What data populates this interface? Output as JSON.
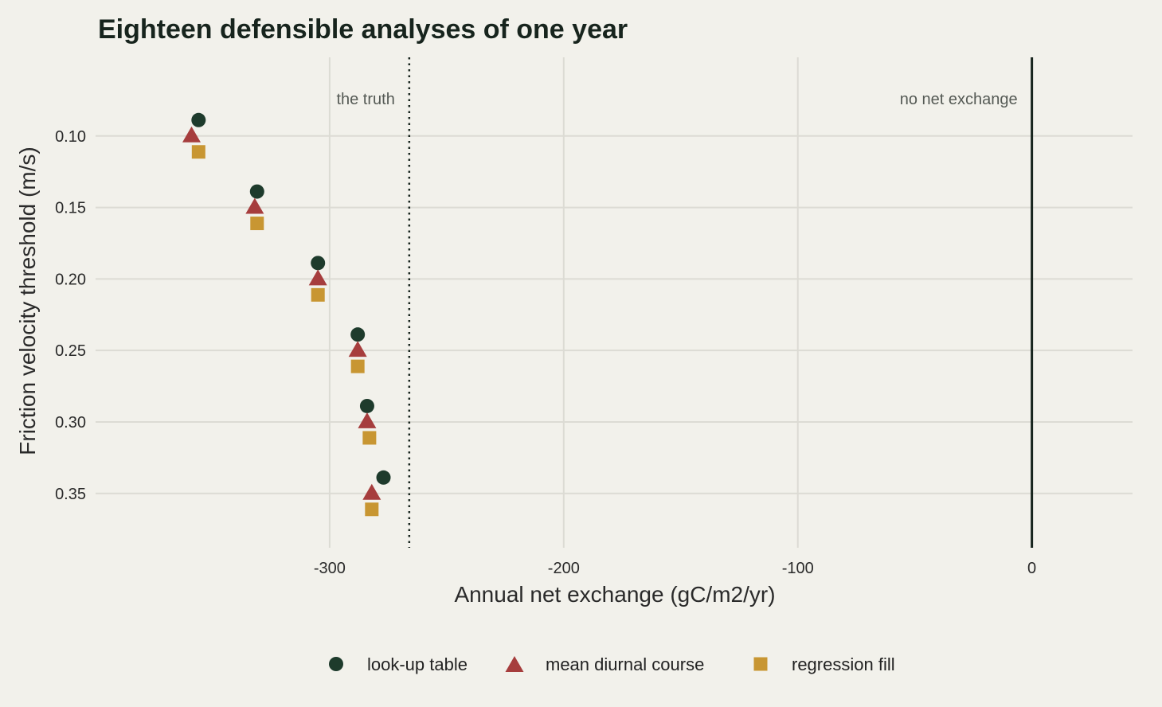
{
  "chart_data": {
    "type": "scatter",
    "title": "Eighteen defensible analyses of one year",
    "xlabel": "Annual net exchange (gC/m2/yr)",
    "ylabel": "Friction velocity threshold (m/s)",
    "xlim": [
      -400,
      43
    ],
    "ylim": [
      0.045,
      0.388
    ],
    "y_reversed": true,
    "x_ticks": [
      -300,
      -200,
      -100,
      0
    ],
    "x_tick_labels": [
      "-300",
      "-200",
      "-100",
      "0"
    ],
    "y_ticks": [
      0.1,
      0.15,
      0.2,
      0.25,
      0.3,
      0.35
    ],
    "y_tick_labels": [
      "0.10",
      "0.15",
      "0.20",
      "0.25",
      "0.30",
      "0.35"
    ],
    "grid": true,
    "legend_position": "bottom",
    "reference_lines": [
      {
        "x": -266,
        "style": "dotted",
        "label": "the truth"
      },
      {
        "x": 0,
        "style": "solid",
        "label": "no net exchange"
      }
    ],
    "series": [
      {
        "name": "look-up table",
        "marker": "circle",
        "color": "#1e3b2c",
        "points": [
          {
            "x": -356,
            "y": 0.1
          },
          {
            "x": -331,
            "y": 0.15
          },
          {
            "x": -305,
            "y": 0.2
          },
          {
            "x": -288,
            "y": 0.25
          },
          {
            "x": -284,
            "y": 0.3
          },
          {
            "x": -277,
            "y": 0.35
          }
        ]
      },
      {
        "name": "mean diurnal course",
        "marker": "triangle",
        "color": "#a63d3d",
        "points": [
          {
            "x": -359,
            "y": 0.1
          },
          {
            "x": -332,
            "y": 0.15
          },
          {
            "x": -305,
            "y": 0.2
          },
          {
            "x": -288,
            "y": 0.25
          },
          {
            "x": -284,
            "y": 0.3
          },
          {
            "x": -282,
            "y": 0.35
          }
        ]
      },
      {
        "name": "regression fill",
        "marker": "square",
        "color": "#c89632",
        "points": [
          {
            "x": -356,
            "y": 0.1
          },
          {
            "x": -331,
            "y": 0.15
          },
          {
            "x": -305,
            "y": 0.2
          },
          {
            "x": -288,
            "y": 0.25
          },
          {
            "x": -283,
            "y": 0.3
          },
          {
            "x": -282,
            "y": 0.35
          }
        ]
      }
    ]
  },
  "colors": {
    "background": "#f2f1eb",
    "grid": "#dcdbd4",
    "reference_line": "#17241d"
  }
}
